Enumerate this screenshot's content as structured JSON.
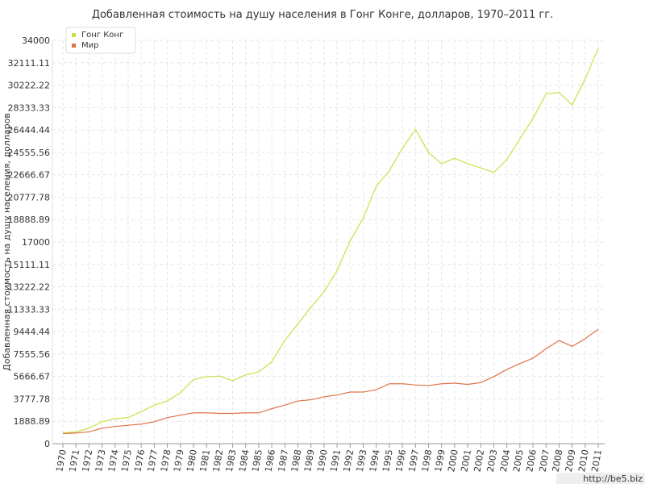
{
  "chart_data": {
    "type": "line",
    "title": "Добавленная стоимость на душу населения в Гонг Конге, долларов, 1970–2011 гг.",
    "y_label": "Добавленная стоимость на душу населения, долларов",
    "watermark": "http://be5.biz",
    "x": [
      1970,
      1971,
      1972,
      1973,
      1974,
      1975,
      1976,
      1977,
      1978,
      1979,
      1980,
      1981,
      1982,
      1983,
      1984,
      1985,
      1986,
      1987,
      1988,
      1989,
      1990,
      1991,
      1992,
      1993,
      1994,
      1995,
      1996,
      1997,
      1998,
      1999,
      2000,
      2001,
      2002,
      2003,
      2004,
      2005,
      2006,
      2007,
      2008,
      2009,
      2010,
      2011
    ],
    "xlim": [
      1970,
      2011
    ],
    "series": [
      {
        "name": "Гонг Конг",
        "color": "#c8e04a",
        "values": [
          900,
          1000,
          1300,
          1850,
          2100,
          2200,
          2700,
          3250,
          3600,
          4300,
          5400,
          5650,
          5700,
          5300,
          5800,
          6050,
          6900,
          8700,
          10100,
          11500,
          12800,
          14600,
          17100,
          19000,
          21700,
          23000,
          24900,
          26500,
          24550,
          23600,
          24050,
          23600,
          23250,
          22850,
          23950,
          25700,
          27400,
          29500,
          29600,
          28550,
          30750,
          33300
        ]
      },
      {
        "name": "Мир",
        "color": "#e0734a",
        "values": [
          850,
          900,
          1000,
          1300,
          1450,
          1550,
          1650,
          1850,
          2200,
          2400,
          2600,
          2600,
          2550,
          2550,
          2600,
          2600,
          2950,
          3250,
          3600,
          3700,
          3950,
          4100,
          4350,
          4350,
          4550,
          5050,
          5050,
          4950,
          4900,
          5050,
          5100,
          5000,
          5150,
          5650,
          6250,
          6750,
          7200,
          8000,
          8700,
          8200,
          8850,
          9650
        ]
      }
    ],
    "ylim": [
      0,
      34000
    ],
    "yticks": [
      0,
      1888.89,
      3777.78,
      5666.67,
      7555.56,
      9444.44,
      11333.33,
      13222.22,
      15111.11,
      17000,
      18888.89,
      20777.78,
      22666.67,
      24555.56,
      26444.44,
      28333.33,
      30222.22,
      32111.11,
      34000
    ],
    "grid": true,
    "legend": "top-left"
  }
}
